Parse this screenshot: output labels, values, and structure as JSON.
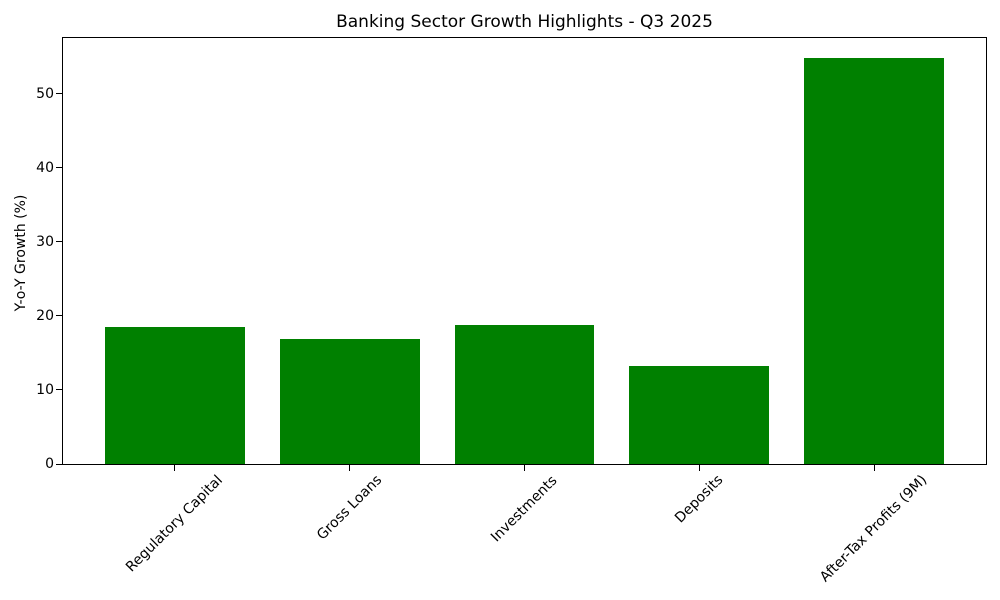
{
  "colors": {
    "bar": "#008000",
    "text": "#000000",
    "spine": "#000000",
    "background": "#ffffff"
  },
  "chart_data": {
    "type": "bar",
    "title": "Banking Sector Growth Highlights - Q3 2025",
    "xlabel": "",
    "ylabel": "Y-o-Y Growth (%)",
    "categories": [
      "Regulatory Capital",
      "Gross Loans",
      "Investments",
      "Deposits",
      "After-Tax Profits (9M)"
    ],
    "values": [
      18.5,
      16.9,
      18.8,
      13.3,
      54.8
    ],
    "bar_color": "#008000",
    "ylim": [
      0,
      57.54
    ],
    "yticks": [
      0,
      10,
      20,
      30,
      40,
      50
    ],
    "grid": false,
    "legend": "none",
    "x_tick_rotation_deg": 45
  }
}
